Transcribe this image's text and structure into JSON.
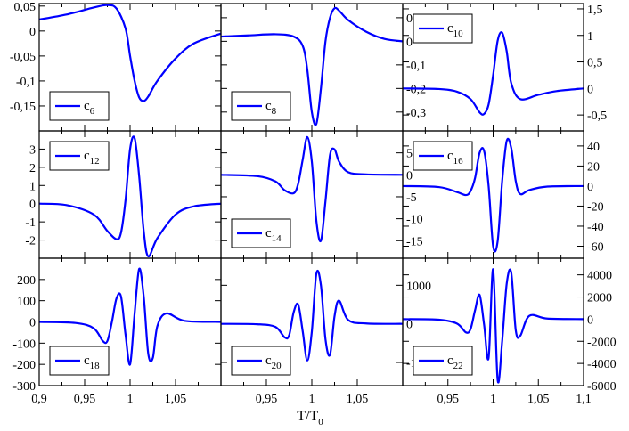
{
  "chart_data": {
    "type": "line",
    "layout": "3x3 grid of panels sharing x axis",
    "series_color": "#0000ff",
    "x_label": "T/T",
    "x_label_sub": "0",
    "x_range": [
      0.9,
      1.1
    ],
    "bottom_tick_labels": [
      [
        "0,9",
        "0,95",
        "1",
        "1,05"
      ],
      [
        "0,95",
        "1",
        "1,05"
      ],
      [
        "0,95",
        "1",
        "1,05",
        "1,1"
      ]
    ],
    "panels": [
      {
        "legend": "c",
        "legend_sub": "6",
        "legend_pos": "bottom-left",
        "ylim": [
          -0.2,
          0.055
        ],
        "y_axis_side": "left",
        "yticks": [
          0.05,
          0,
          -0.05,
          -0.1,
          -0.15
        ],
        "ytick_labels": [
          "0,05",
          "0",
          "-0,05",
          "-0,1",
          "-0,15"
        ],
        "x": [
          0.9,
          0.93,
          0.96,
          0.975,
          0.985,
          0.995,
          1.0,
          1.005,
          1.01,
          1.015,
          1.02,
          1.03,
          1.05,
          1.07,
          1.1
        ],
        "y": [
          0.023,
          0.033,
          0.047,
          0.052,
          0.045,
          0.005,
          -0.05,
          -0.1,
          -0.133,
          -0.14,
          -0.131,
          -0.1,
          -0.055,
          -0.025,
          -0.005
        ]
      },
      {
        "legend": "c",
        "legend_sub": "8",
        "legend_pos": "bottom-left",
        "ylim": [
          -0.38,
          0.16
        ],
        "y_axis_side": "right",
        "yticks": [
          0.1,
          0,
          -0.1,
          -0.2,
          -0.3
        ],
        "ytick_labels": [
          "0,1",
          "0",
          "-0,1",
          "-0,2",
          "-0,3"
        ],
        "x": [
          0.9,
          0.93,
          0.96,
          0.98,
          0.99,
          0.995,
          1.0,
          1.005,
          1.01,
          1.015,
          1.02,
          1.025,
          1.03,
          1.04,
          1.06,
          1.08,
          1.1
        ],
        "y": [
          0.02,
          0.025,
          0.03,
          0.02,
          -0.02,
          -0.12,
          -0.3,
          -0.35,
          -0.2,
          0.0,
          0.1,
          0.14,
          0.13,
          0.09,
          0.04,
          0.01,
          0.0
        ]
      },
      {
        "legend": "c",
        "legend_sub": "10",
        "legend_pos": "top-left",
        "ylim": [
          -0.8,
          1.6
        ],
        "y_axis_side": "right",
        "yticks": [
          1.5,
          1,
          0.5,
          0,
          -0.5
        ],
        "ytick_labels": [
          "1,5",
          "1",
          "0,5",
          "0",
          "-0,5"
        ],
        "x": [
          0.9,
          0.94,
          0.96,
          0.975,
          0.985,
          0.99,
          0.995,
          1.0,
          1.005,
          1.01,
          1.015,
          1.02,
          1.03,
          1.05,
          1.07,
          1.1
        ],
        "y": [
          0.0,
          -0.01,
          -0.06,
          -0.2,
          -0.45,
          -0.48,
          -0.3,
          0.25,
          0.9,
          1.05,
          0.7,
          0.1,
          -0.2,
          -0.12,
          -0.05,
          0.0
        ]
      },
      {
        "legend": "c",
        "legend_sub": "12",
        "legend_pos": "top-left",
        "ylim": [
          -3,
          4
        ],
        "y_axis_side": "left",
        "yticks": [
          3,
          2,
          1,
          0,
          -1,
          -2
        ],
        "ytick_labels": [
          "3",
          "2",
          "1",
          "0",
          "-1",
          "-2"
        ],
        "x": [
          0.9,
          0.93,
          0.96,
          0.975,
          0.985,
          0.99,
          0.995,
          1.0,
          1.005,
          1.01,
          1.015,
          1.02,
          1.03,
          1.05,
          1.07,
          1.1
        ],
        "y": [
          0.0,
          -0.08,
          -0.6,
          -1.5,
          -1.95,
          -1.6,
          0.2,
          3.0,
          3.6,
          1.5,
          -1.5,
          -2.9,
          -1.9,
          -0.6,
          -0.15,
          0.0
        ]
      },
      {
        "legend": "c",
        "legend_sub": "14",
        "legend_pos": "bottom-left",
        "ylim": [
          -19,
          10
        ],
        "y_axis_side": "right",
        "yticks": [
          5,
          0,
          -5,
          -10,
          -15
        ],
        "ytick_labels": [
          "5",
          "0",
          "-5",
          "-10",
          "-15"
        ],
        "x": [
          0.9,
          0.94,
          0.96,
          0.97,
          0.98,
          0.985,
          0.99,
          0.995,
          1.0,
          1.005,
          1.01,
          1.015,
          1.02,
          1.025,
          1.03,
          1.04,
          1.06,
          1.1
        ],
        "y": [
          0.0,
          -0.3,
          -1.5,
          -3.5,
          -4.2,
          -2.0,
          3.5,
          8.6,
          3.0,
          -10.5,
          -15.0,
          -6.0,
          4.5,
          5.8,
          3.0,
          0.6,
          0.1,
          0.0
        ]
      },
      {
        "legend": "c",
        "legend_sub": "16",
        "legend_pos": "top-left",
        "ylim": [
          -72,
          55
        ],
        "y_axis_side": "right",
        "yticks": [
          40,
          20,
          0,
          -20,
          -40,
          -60
        ],
        "ytick_labels": [
          "40",
          "20",
          "0",
          "-20",
          "-40",
          "-60"
        ],
        "x": [
          0.9,
          0.94,
          0.96,
          0.97,
          0.975,
          0.98,
          0.985,
          0.99,
          0.995,
          1.0,
          1.005,
          1.01,
          1.015,
          1.02,
          1.025,
          1.03,
          1.04,
          1.06,
          1.1
        ],
        "y": [
          0.0,
          -1.0,
          -6.0,
          -9.0,
          -5.0,
          8.0,
          33.0,
          35.0,
          0.0,
          -60.0,
          -55.0,
          5.0,
          45.0,
          38.0,
          5.0,
          -8.0,
          -4.0,
          -0.5,
          0.0
        ]
      },
      {
        "legend": "c",
        "legend_sub": "18",
        "legend_pos": "bottom-left",
        "ylim": [
          -300,
          300
        ],
        "y_axis_side": "left",
        "yticks": [
          200,
          100,
          0,
          -100,
          -200,
          -300
        ],
        "ytick_labels": [
          "200",
          "100",
          "0",
          "-100",
          "-200",
          "-300"
        ],
        "x": [
          0.9,
          0.94,
          0.96,
          0.97,
          0.975,
          0.98,
          0.985,
          0.99,
          0.995,
          1.0,
          1.005,
          1.01,
          1.015,
          1.02,
          1.025,
          1.03,
          1.04,
          1.06,
          1.1
        ],
        "y": [
          0.0,
          -5.0,
          -30.0,
          -90.0,
          -90.0,
          0.0,
          110.0,
          120.0,
          -60.0,
          -200.0,
          40.0,
          250.0,
          120.0,
          -150.0,
          -170.0,
          -20.0,
          40.0,
          5.0,
          0.0
        ]
      },
      {
        "legend": "c",
        "legend_sub": "20",
        "legend_pos": "bottom-left",
        "ylim": [
          -1600,
          1700
        ],
        "y_axis_side": "right",
        "yticks": [
          1000,
          0,
          -1000
        ],
        "ytick_labels": [
          "1000",
          "0",
          "-1000"
        ],
        "x": [
          0.9,
          0.94,
          0.96,
          0.97,
          0.975,
          0.98,
          0.985,
          0.99,
          0.995,
          1.0,
          1.005,
          1.01,
          1.015,
          1.02,
          1.025,
          1.03,
          1.04,
          1.06,
          1.1
        ],
        "y": [
          0.0,
          -10.0,
          -80.0,
          -350.0,
          -300.0,
          300.0,
          500.0,
          -200.0,
          -950.0,
          -200.0,
          1300.0,
          1000.0,
          -400.0,
          -800.0,
          200.0,
          600.0,
          100.0,
          10.0,
          0.0
        ]
      },
      {
        "legend": "c",
        "legend_sub": "22",
        "legend_pos": "bottom-left",
        "ylim": [
          -6000,
          5500
        ],
        "y_axis_side": "right",
        "yticks": [
          4000,
          2000,
          0,
          -2000,
          -4000,
          -6000
        ],
        "ytick_labels": [
          "4000",
          "2000",
          "0",
          "-2000",
          "-4000",
          "-6000"
        ],
        "x": [
          0.9,
          0.94,
          0.96,
          0.97,
          0.975,
          0.98,
          0.985,
          0.99,
          0.995,
          1.0,
          1.005,
          1.01,
          1.015,
          1.02,
          1.025,
          1.03,
          1.04,
          1.06,
          1.1
        ],
        "y": [
          0.0,
          -50.0,
          -400.0,
          -1200.0,
          -900.0,
          800.0,
          2200.0,
          -500.0,
          -3500.0,
          4500.0,
          -5500.0,
          -2000.0,
          3200.0,
          4200.0,
          -1000.0,
          -1500.0,
          300.0,
          50.0,
          0.0
        ]
      }
    ]
  }
}
